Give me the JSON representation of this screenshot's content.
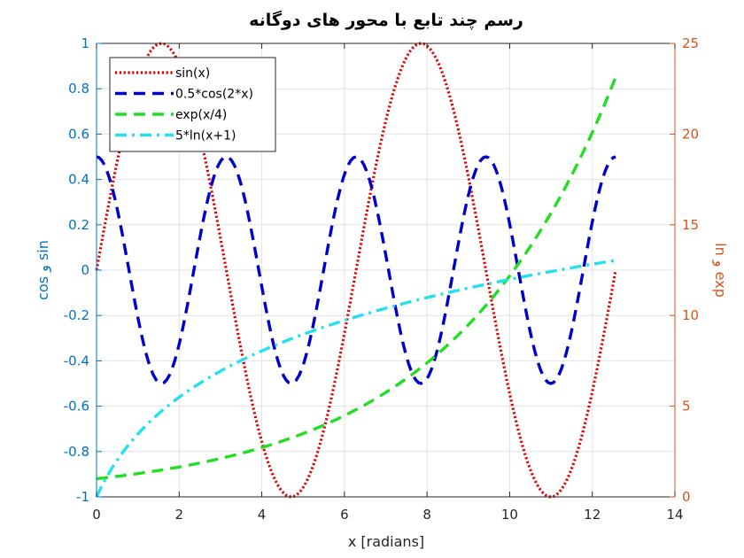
{
  "chart_data": {
    "type": "line",
    "title": "رسم چند تابع با محور های دوگانه",
    "xlabel": "x [radians]",
    "ylabel_left": "sin و cos",
    "ylabel_right": "exp و ln",
    "xlim": [
      0,
      14
    ],
    "ylim_left": [
      -1,
      1
    ],
    "ylim_right": [
      0,
      25
    ],
    "xticks": [
      "0",
      "2",
      "4",
      "6",
      "8",
      "10",
      "12",
      "14"
    ],
    "yticks_left": [
      "-1",
      "-0.8",
      "-0.6",
      "-0.4",
      "-0.2",
      "0",
      "0.2",
      "0.4",
      "0.6",
      "0.8",
      "1"
    ],
    "yticks_right": [
      "0",
      "5",
      "10",
      "15",
      "20",
      "25"
    ],
    "grid": true,
    "legend_position": "top-left",
    "x_range": [
      0,
      12.566
    ],
    "series": [
      {
        "name": "sin(x)",
        "axis": "left",
        "color": "#e00000",
        "style": "dotted",
        "formula": "sin(x)"
      },
      {
        "name": "0.5*cos(2*x)",
        "axis": "left",
        "color": "#0000cc",
        "style": "dashed",
        "formula": "0.5*cos(2*x)"
      },
      {
        "name": "exp(x/4)",
        "axis": "right",
        "color": "#22dd22",
        "style": "dashed",
        "formula": "exp(x/4)"
      },
      {
        "name": "5*ln(x+1)",
        "axis": "right",
        "color": "#22e0f0",
        "style": "dashdot",
        "formula": "5*ln(x+1)"
      }
    ],
    "sample_points": {
      "x": [
        0,
        1,
        2,
        3,
        4,
        5,
        6,
        7,
        8,
        9,
        10,
        11,
        12,
        12.566
      ],
      "sin(x)": [
        0,
        0.841,
        0.909,
        0.141,
        -0.757,
        -0.959,
        -0.279,
        0.657,
        0.989,
        0.412,
        -0.544,
        -1.0,
        -0.537,
        0
      ],
      "0.5*cos(2*x)": [
        0.5,
        -0.208,
        -0.327,
        0.48,
        -0.073,
        -0.42,
        0.422,
        0.068,
        -0.479,
        0.33,
        0.204,
        -0.5,
        0.212,
        0.5
      ],
      "exp(x/4)": [
        1.0,
        1.284,
        1.649,
        2.117,
        2.718,
        3.49,
        4.482,
        5.755,
        7.389,
        9.488,
        12.182,
        15.643,
        20.086,
        23.14
      ],
      "5*ln(x+1)": [
        0,
        3.466,
        5.493,
        6.931,
        8.047,
        8.959,
        9.73,
        10.397,
        10.986,
        11.513,
        11.989,
        12.425,
        12.825,
        13.05
      ]
    }
  }
}
